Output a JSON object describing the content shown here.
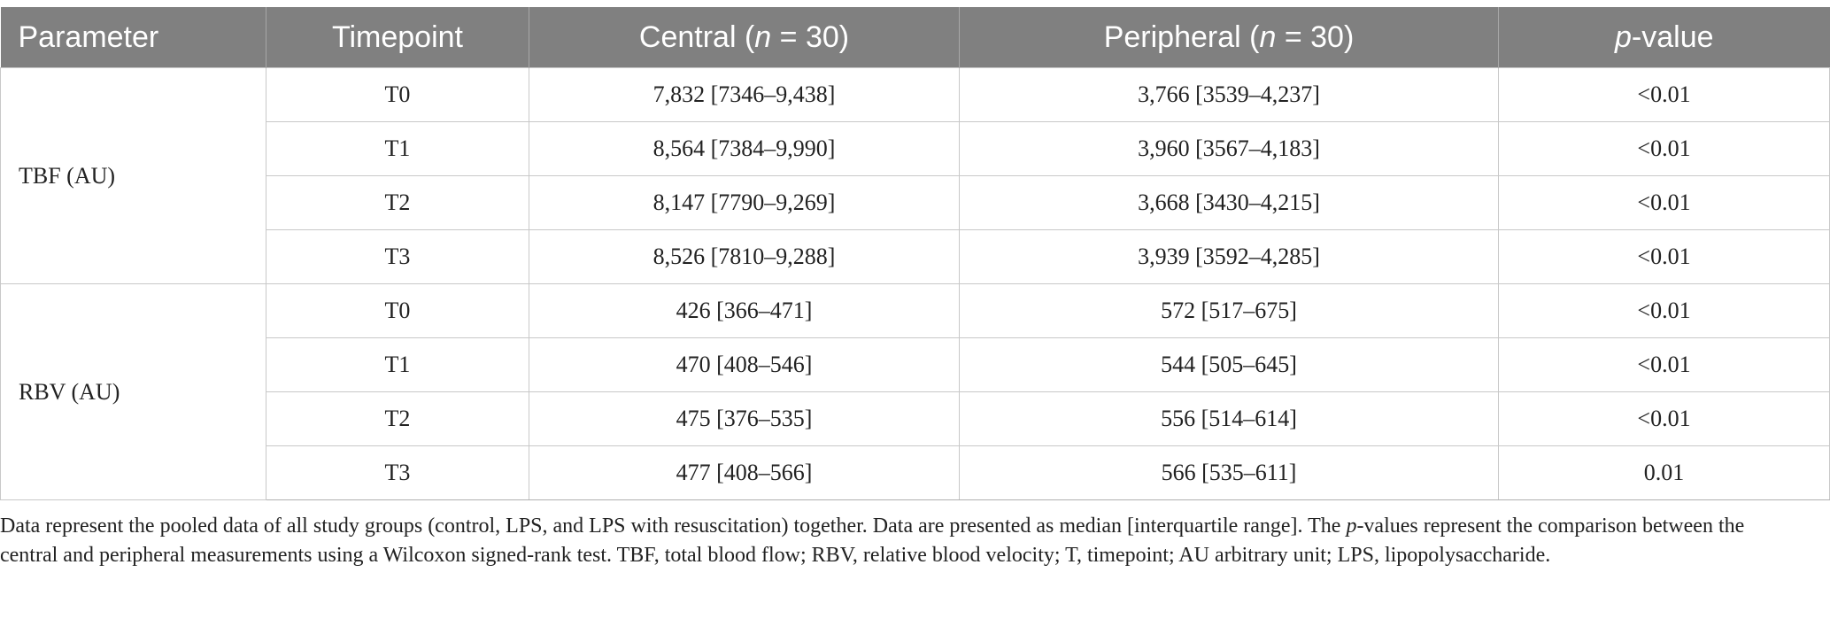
{
  "table": {
    "headers": {
      "parameter": "Parameter",
      "timepoint": "Timepoint",
      "central_prefix": "Central (",
      "central_n": "n",
      "central_suffix": " = 30)",
      "peripheral_prefix": "Peripheral (",
      "peripheral_n": "n",
      "peripheral_suffix": " = 30)",
      "pvalue_p": "p",
      "pvalue_suffix": "-value"
    },
    "groups": [
      {
        "parameter": "TBF (AU)",
        "rows": [
          {
            "timepoint": "T0",
            "central": "7,832 [7346–9,438]",
            "peripheral": "3,766 [3539–4,237]",
            "p": "<0.01"
          },
          {
            "timepoint": "T1",
            "central": "8,564 [7384–9,990]",
            "peripheral": "3,960 [3567–4,183]",
            "p": "<0.01"
          },
          {
            "timepoint": "T2",
            "central": "8,147 [7790–9,269]",
            "peripheral": "3,668 [3430–4,215]",
            "p": "<0.01"
          },
          {
            "timepoint": "T3",
            "central": "8,526 [7810–9,288]",
            "peripheral": "3,939 [3592–4,285]",
            "p": "<0.01"
          }
        ]
      },
      {
        "parameter": "RBV (AU)",
        "rows": [
          {
            "timepoint": "T0",
            "central": "426 [366–471]",
            "peripheral": "572 [517–675]",
            "p": "<0.01"
          },
          {
            "timepoint": "T1",
            "central": "470 [408–546]",
            "peripheral": "544 [505–645]",
            "p": "<0.01"
          },
          {
            "timepoint": "T2",
            "central": "475 [376–535]",
            "peripheral": "556 [514–614]",
            "p": "<0.01"
          },
          {
            "timepoint": "T3",
            "central": "477 [408–566]",
            "peripheral": "566 [535–611]",
            "p": "0.01"
          }
        ]
      }
    ]
  },
  "footnote": {
    "part1": "Data represent the pooled data of all study groups (control, LPS, and LPS with resuscitation) together. Data are presented as median [interquartile range]. The ",
    "p": "p",
    "part2": "-values represent the comparison between the central and peripheral measurements using a Wilcoxon signed-rank test. TBF, total blood flow; RBV, relative blood velocity; T, timepoint; AU arbitrary unit; LPS, lipopolysaccharide."
  }
}
